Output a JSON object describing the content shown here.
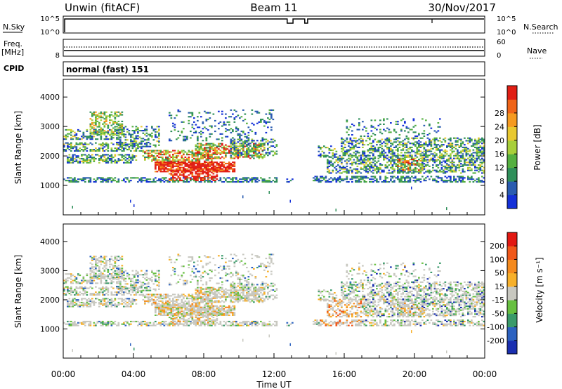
{
  "header": {
    "station": "Unwin (fitACF)",
    "beam": "Beam 11",
    "date": "30/Nov/2017"
  },
  "chart_data": [
    {
      "type": "line",
      "panel": "noise",
      "left_label": "N.Sky",
      "right_label": "N.Search",
      "left_ticks": [
        "10^5",
        "10^0"
      ],
      "right_ticks": [
        "10^5",
        "10^0"
      ],
      "right_legend_style": "dotted",
      "events": [
        {
          "kind": "dip",
          "start": "12:45",
          "end": "13:05"
        },
        {
          "kind": "dip",
          "start": "13:45",
          "end": "13:55"
        },
        {
          "kind": "tick",
          "start": "21:00",
          "end": "21:00"
        }
      ]
    },
    {
      "type": "line",
      "panel": "frequency",
      "left_label": "Freq.",
      "left_unit": "[MHz]",
      "right_label": "Nave",
      "left_ticks": [
        "8"
      ],
      "right_ticks": [
        "60",
        "0"
      ],
      "right_legend_style": "dotted",
      "cpid_label": "CPID",
      "cpid_value": "normal (fast) 151"
    },
    {
      "type": "heatmap",
      "panel": "power",
      "xlabel": "Time UT",
      "ylabel": "Slant Range [km]",
      "xlim": [
        "00:00",
        "24:00"
      ],
      "ylim": [
        0,
        4600
      ],
      "yticks": [
        1000,
        2000,
        3000,
        4000
      ],
      "xticks": [
        "00:00",
        "04:00",
        "08:00",
        "12:00",
        "16:00",
        "20:00",
        "00:00"
      ],
      "colorbar_label": "Power [dB]",
      "colorbar_ticks": [
        "4",
        "8",
        "12",
        "16",
        "20",
        "24",
        "28"
      ],
      "colorbar_colors": [
        "#1430d8",
        "#2a5cb0",
        "#2f8f5a",
        "#55b040",
        "#a8cf3a",
        "#e8c830",
        "#f59a20",
        "#f06418",
        "#e11e14"
      ]
    },
    {
      "type": "heatmap",
      "panel": "velocity",
      "xlabel": "Time UT",
      "ylabel": "Slant Range [km]",
      "xlim": [
        "00:00",
        "24:00"
      ],
      "ylim": [
        0,
        4600
      ],
      "yticks": [
        1000,
        2000,
        3000,
        4000
      ],
      "xticks": [
        "00:00",
        "04:00",
        "08:00",
        "12:00",
        "16:00",
        "20:00",
        "00:00"
      ],
      "colorbar_label": "Velocity [m s⁻¹]",
      "colorbar_ticks": [
        "200",
        "100",
        "50",
        "15",
        "-15",
        "-50",
        "-100",
        "-200"
      ],
      "colorbar_colors": [
        "#1a2fb0",
        "#2c62c0",
        "#3a9a6a",
        "#67c040",
        "#c8c8c0",
        "#f7b02a",
        "#f58a1e",
        "#f0581a",
        "#e21812"
      ]
    }
  ]
}
